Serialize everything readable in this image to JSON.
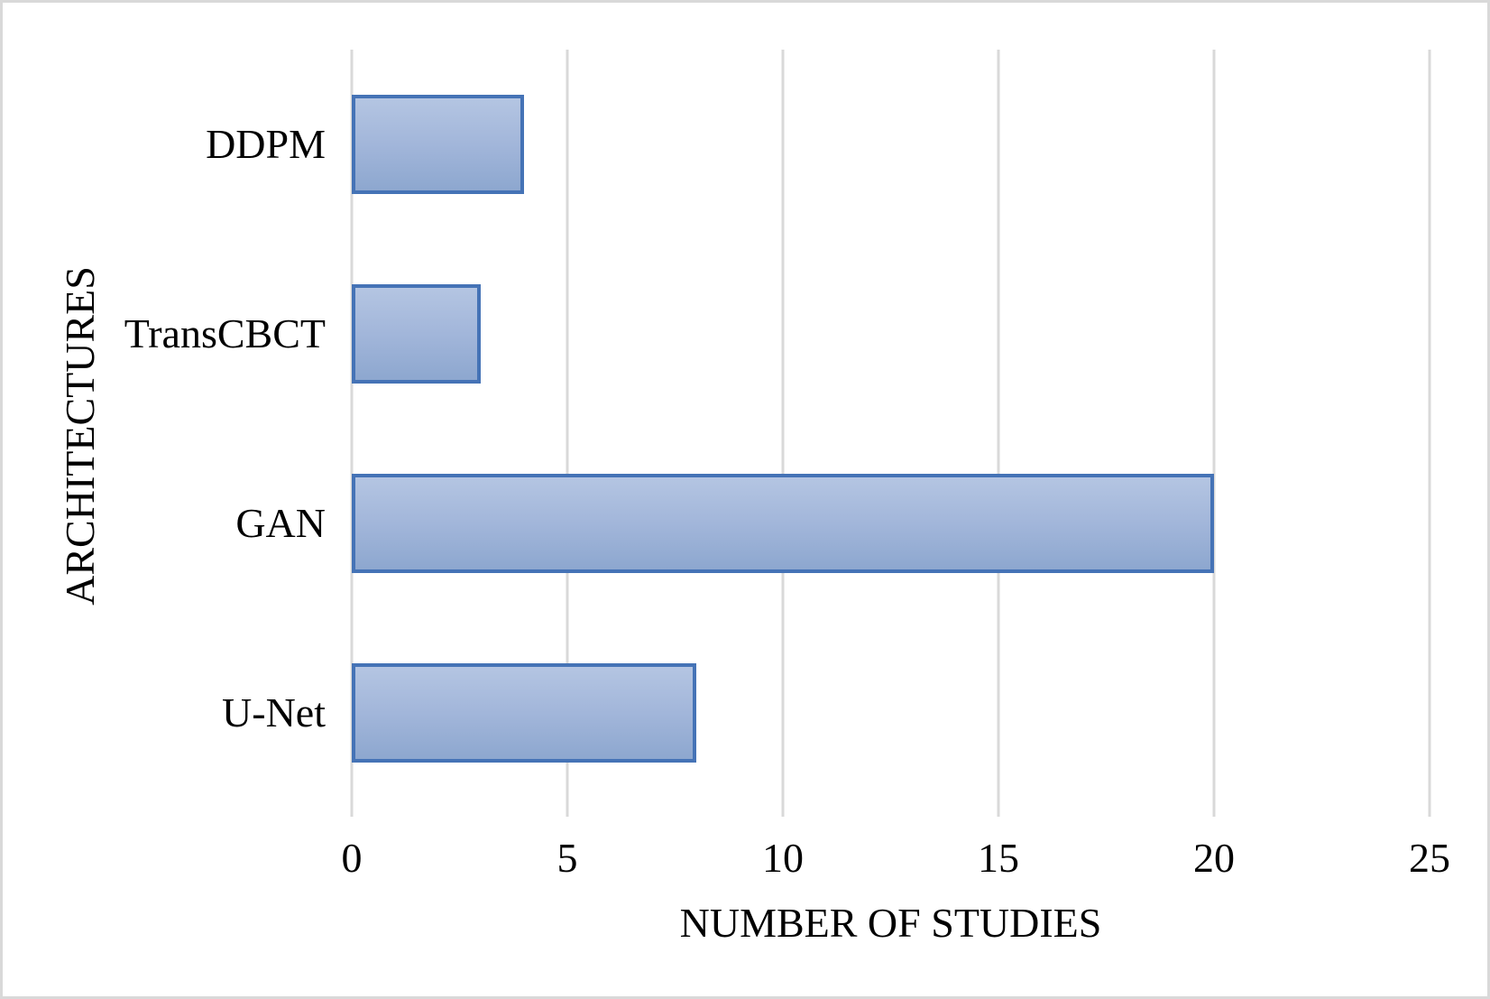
{
  "chart_data": {
    "type": "bar",
    "orientation": "horizontal",
    "categories": [
      "DDPM",
      "TransCBCT",
      "GAN",
      "U-Net"
    ],
    "values": [
      4,
      3,
      20,
      8
    ],
    "title": "",
    "xlabel": "NUMBER OF STUDIES",
    "ylabel": "ARCHITECTURES",
    "xlim": [
      0,
      25
    ],
    "xticks": [
      0,
      5,
      10,
      15,
      20,
      25
    ],
    "grid": "vertical-gridlines-on",
    "legend": "none",
    "colors": {
      "bar_fill_top": "#b4c5e2",
      "bar_fill_bottom": "#8da7cf",
      "bar_border": "#4573b6",
      "gridline": "#d9d9d9",
      "frame_border": "#d9d9d9",
      "text": "#000000",
      "background": "#ffffff"
    }
  }
}
